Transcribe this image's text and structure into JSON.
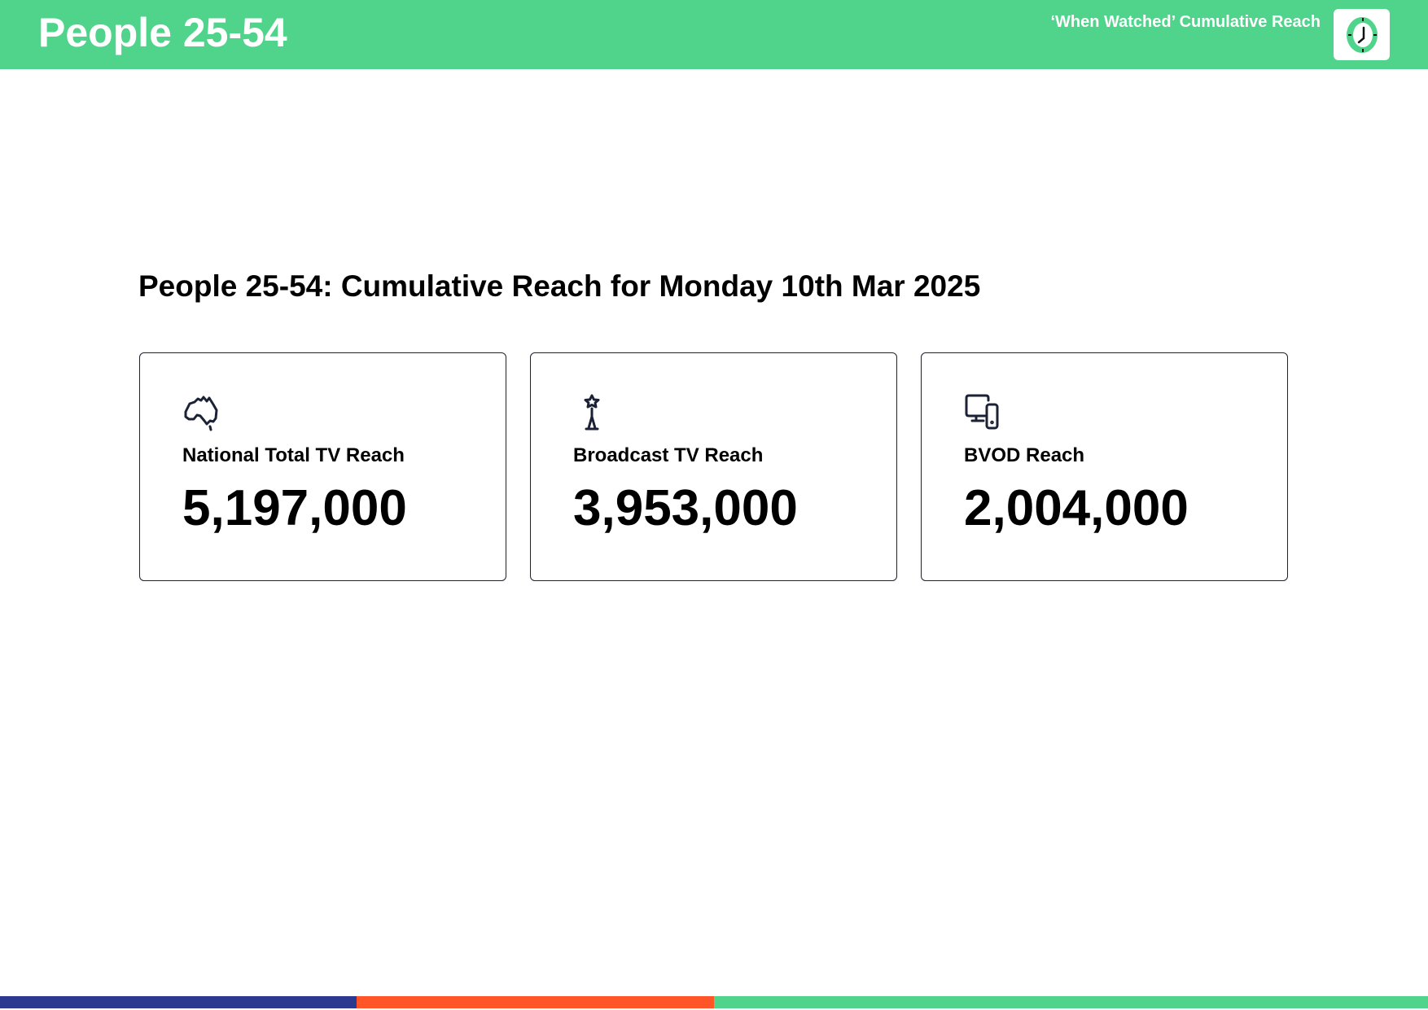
{
  "header": {
    "title": "People 25-54",
    "report_title": "‘When Watched’ Cumulative Reach",
    "logo_icon": "clock-icon",
    "color": "#50D38A"
  },
  "main": {
    "heading": "People 25-54: Cumulative Reach for Monday 10th Mar 2025",
    "cards": [
      {
        "icon": "australia-map-icon",
        "label": "National Total TV Reach",
        "value": "5,197,000"
      },
      {
        "icon": "broadcast-tower-icon",
        "label": "Broadcast TV Reach",
        "value": "3,953,000"
      },
      {
        "icon": "devices-icon",
        "label": "BVOD Reach",
        "value": "2,004,000"
      }
    ]
  },
  "footer": {
    "colors": [
      "#2B3990",
      "#FF5528",
      "#50D38A"
    ]
  }
}
